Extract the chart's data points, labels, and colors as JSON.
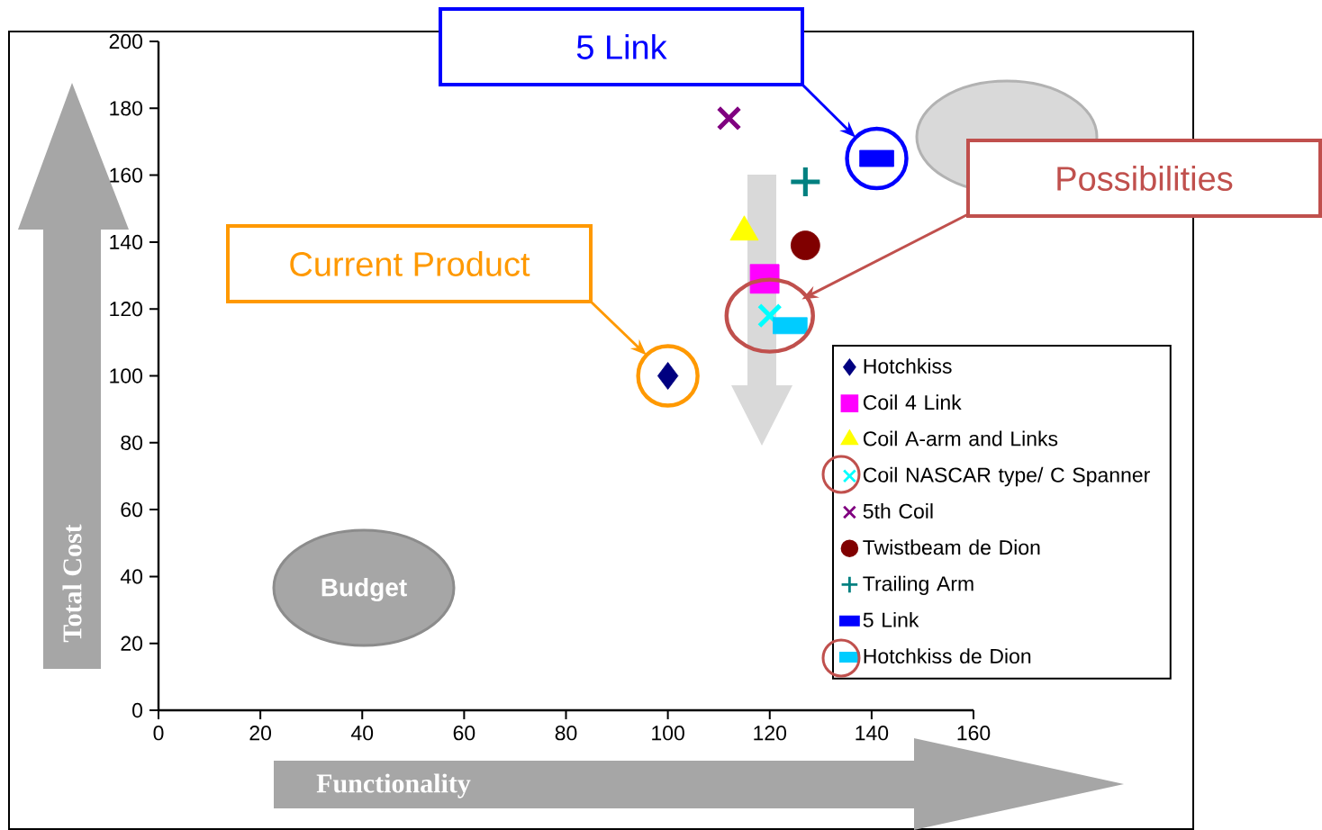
{
  "chart_data": {
    "type": "scatter",
    "xlim": [
      0,
      160
    ],
    "ylim": [
      0,
      200
    ],
    "xticks": [
      0,
      20,
      40,
      60,
      80,
      100,
      120,
      140,
      160
    ],
    "yticks": [
      0,
      20,
      40,
      60,
      80,
      100,
      120,
      140,
      160,
      180,
      200
    ],
    "legend": "bottom right",
    "series": [
      {
        "name": "Hotchkiss",
        "color": "#000080",
        "marker": "diamond",
        "x": [
          100
        ],
        "values": [
          100
        ]
      },
      {
        "name": "Coil 4 Link",
        "color": "#ff00ff",
        "marker": "square",
        "x": [
          119
        ],
        "values": [
          129
        ]
      },
      {
        "name": "Coil A-arm and Links",
        "color": "#ffff00",
        "marker": "triangle",
        "x": [
          115
        ],
        "values": [
          143
        ]
      },
      {
        "name": "Coil NASCAR type/ C Spanner",
        "color": "#00ffff",
        "marker": "cross",
        "x": [
          120
        ],
        "values": [
          118
        ]
      },
      {
        "name": "5th Coil",
        "color": "#800080",
        "marker": "cross",
        "x": [
          112
        ],
        "values": [
          177
        ]
      },
      {
        "name": "Twistbeam de Dion",
        "color": "#800000",
        "marker": "circle",
        "x": [
          127
        ],
        "values": [
          139
        ]
      },
      {
        "name": "Trailing Arm",
        "color": "#008080",
        "marker": "cross",
        "x": [
          127
        ],
        "values": [
          158
        ]
      },
      {
        "name": "5 Link",
        "color": "#0000ff",
        "x": [
          141
        ],
        "values": [
          165
        ]
      },
      {
        "name": "Hotchkiss de Dion",
        "color": "#00ccff",
        "x": [
          124
        ],
        "values": [
          115
        ]
      }
    ],
    "annotations": [
      "Current Product",
      "5 Link",
      "Possibilities",
      "Budget",
      "Total Cost",
      "Functionality"
    ]
  }
}
